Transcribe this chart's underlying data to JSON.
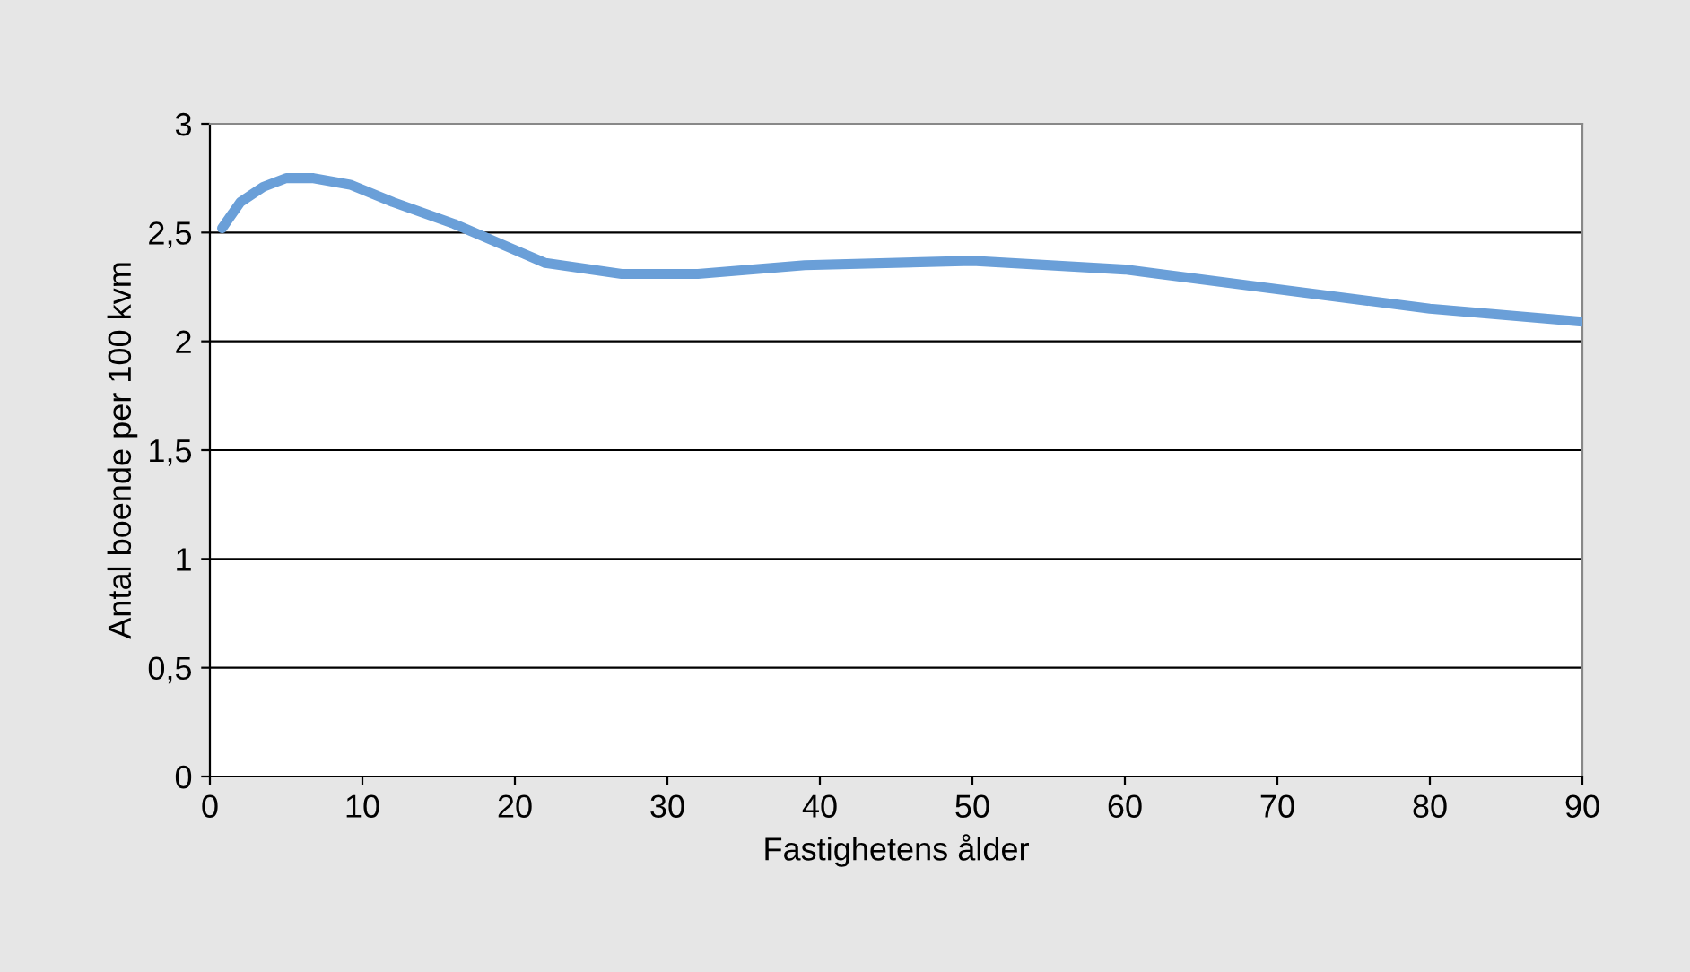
{
  "chart_data": {
    "type": "line",
    "xlabel": "Fastighetens ålder",
    "ylabel": "Antal boende per 100 kvm",
    "x": [
      0.8,
      2,
      3.5,
      5,
      6.8,
      9.2,
      12,
      16,
      20,
      22,
      27,
      32,
      39,
      50,
      60,
      70,
      80,
      90
    ],
    "series": [
      {
        "color": "#6a9fd8",
        "values": [
          2.52,
          2.64,
          2.71,
          2.75,
          2.75,
          2.72,
          2.64,
          2.54,
          2.42,
          2.36,
          2.31,
          2.31,
          2.35,
          2.37,
          2.33,
          2.24,
          2.15,
          2.09
        ]
      }
    ],
    "xlim": [
      0,
      90
    ],
    "xticks": [
      0,
      10,
      20,
      30,
      40,
      50,
      60,
      70,
      80,
      90
    ],
    "ylim": [
      0,
      3
    ],
    "yticks": [
      0,
      {
        "value": 0.5,
        "label": "0,5"
      },
      1,
      {
        "value": 1.5,
        "label": "1,5"
      },
      2,
      {
        "value": 2.5,
        "label": "2,5"
      },
      3
    ],
    "grid": "y",
    "marker": "none",
    "line_style": "solid"
  }
}
